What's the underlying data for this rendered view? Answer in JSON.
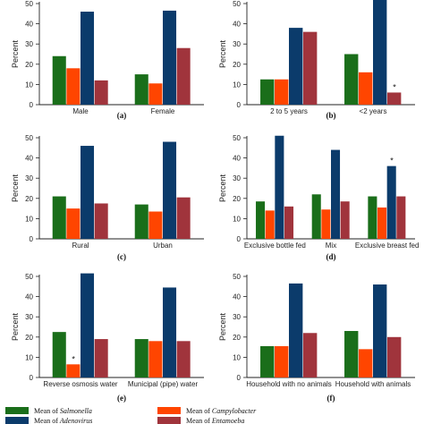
{
  "colors": {
    "salmonella": "#1a6e1a",
    "campylobacter": "#ff4500",
    "adenovirus": "#0b3b6b",
    "entamoeba": "#a0343c"
  },
  "legend": [
    {
      "prefix": "Mean of ",
      "name": "Salmonella"
    },
    {
      "prefix": "Mean of ",
      "name": "Campylobacter"
    },
    {
      "prefix": "Mean of ",
      "name": "Adenovirus"
    },
    {
      "prefix": "Mean of ",
      "name": "Entamoeba"
    }
  ],
  "chart_data": [
    {
      "type": "bar",
      "panel": "(a)",
      "ylabel": "Percent",
      "ylim": [
        0,
        50
      ],
      "yticks": [
        0,
        10,
        20,
        30,
        40,
        50
      ],
      "categories": [
        "Male",
        "Female"
      ],
      "series": [
        {
          "name": "Salmonella",
          "values": [
            24,
            15
          ]
        },
        {
          "name": "Campylobacter",
          "values": [
            18,
            10.5
          ]
        },
        {
          "name": "Adenovirus",
          "values": [
            46,
            46.5
          ]
        },
        {
          "name": "Entamoeba",
          "values": [
            12,
            28
          ]
        }
      ],
      "stars": []
    },
    {
      "type": "bar",
      "panel": "(b)",
      "ylabel": "Percent",
      "ylim": [
        0,
        50
      ],
      "yticks": [
        0,
        10,
        20,
        30,
        40,
        50
      ],
      "categories": [
        "2 to 5 years",
        "<2 years"
      ],
      "series": [
        {
          "name": "Salmonella",
          "values": [
            12.5,
            25
          ]
        },
        {
          "name": "Campylobacter",
          "values": [
            12.5,
            16
          ]
        },
        {
          "name": "Adenovirus",
          "values": [
            38,
            52
          ]
        },
        {
          "name": "Entamoeba",
          "values": [
            36,
            6
          ]
        }
      ],
      "stars": [
        {
          "category": 1,
          "series": 3,
          "text": "*"
        }
      ]
    },
    {
      "type": "bar",
      "panel": "(c)",
      "ylabel": "Percent",
      "ylim": [
        0,
        50
      ],
      "yticks": [
        0,
        10,
        20,
        30,
        40,
        50
      ],
      "categories": [
        "Rural",
        "Urban"
      ],
      "series": [
        {
          "name": "Salmonella",
          "values": [
            21,
            17
          ]
        },
        {
          "name": "Campylobacter",
          "values": [
            15,
            13.5
          ]
        },
        {
          "name": "Adenovirus",
          "values": [
            46,
            48
          ]
        },
        {
          "name": "Entamoeba",
          "values": [
            17.5,
            20.5
          ]
        }
      ],
      "stars": []
    },
    {
      "type": "bar",
      "panel": "(d)",
      "ylabel": "Percent",
      "ylim": [
        0,
        50
      ],
      "yticks": [
        0,
        10,
        20,
        30,
        40,
        50
      ],
      "categories": [
        "Exclusive bottle fed",
        "Mix",
        "Exclusive breast fed"
      ],
      "series": [
        {
          "name": "Salmonella",
          "values": [
            18.5,
            22,
            21
          ]
        },
        {
          "name": "Campylobacter",
          "values": [
            14,
            14.5,
            15.5
          ]
        },
        {
          "name": "Adenovirus",
          "values": [
            51,
            44,
            36
          ]
        },
        {
          "name": "Entamoeba",
          "values": [
            16,
            18.5,
            21
          ]
        }
      ],
      "stars": [
        {
          "category": 2,
          "series": 2,
          "text": "*"
        }
      ]
    },
    {
      "type": "bar",
      "panel": "(e)",
      "ylabel": "Percent",
      "ylim": [
        0,
        50
      ],
      "yticks": [
        0,
        10,
        20,
        30,
        40,
        50
      ],
      "categories": [
        "Reverse osmosis water",
        "Municipal (pipe) water"
      ],
      "series": [
        {
          "name": "Salmonella",
          "values": [
            22.5,
            19
          ]
        },
        {
          "name": "Campylobacter",
          "values": [
            6.5,
            18
          ]
        },
        {
          "name": "Adenovirus",
          "values": [
            51.5,
            44.5
          ]
        },
        {
          "name": "Entamoeba",
          "values": [
            19,
            18
          ]
        }
      ],
      "stars": [
        {
          "category": 0,
          "series": 1,
          "text": "*"
        }
      ]
    },
    {
      "type": "bar",
      "panel": "(f)",
      "ylabel": "Percent",
      "ylim": [
        0,
        50
      ],
      "yticks": [
        0,
        10,
        20,
        30,
        40,
        50
      ],
      "categories": [
        "Household with no animals",
        "Household with animals"
      ],
      "series": [
        {
          "name": "Salmonella",
          "values": [
            15.5,
            23
          ]
        },
        {
          "name": "Campylobacter",
          "values": [
            15.5,
            14
          ]
        },
        {
          "name": "Adenovirus",
          "values": [
            46.5,
            46
          ]
        },
        {
          "name": "Entamoeba",
          "values": [
            22,
            20
          ]
        }
      ],
      "stars": []
    }
  ]
}
